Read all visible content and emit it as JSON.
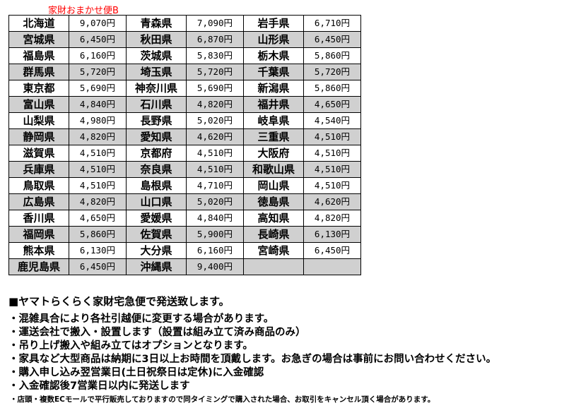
{
  "title": "家財おまかせ便B",
  "rows": [
    [
      [
        "北海道",
        "9,070円"
      ],
      [
        "青森県",
        "7,090円"
      ],
      [
        "岩手県",
        "6,710円"
      ]
    ],
    [
      [
        "宮城県",
        "6,450円"
      ],
      [
        "秋田県",
        "6,870円"
      ],
      [
        "山形県",
        "6,450円"
      ]
    ],
    [
      [
        "福島県",
        "6,160円"
      ],
      [
        "茨城県",
        "5,830円"
      ],
      [
        "栃木県",
        "5,860円"
      ]
    ],
    [
      [
        "群馬県",
        "5,720円"
      ],
      [
        "埼玉県",
        "5,720円"
      ],
      [
        "千葉県",
        "5,720円"
      ]
    ],
    [
      [
        "東京都",
        "5,690円"
      ],
      [
        "神奈川県",
        "5,690円"
      ],
      [
        "新潟県",
        "5,860円"
      ]
    ],
    [
      [
        "富山県",
        "4,840円"
      ],
      [
        "石川県",
        "4,820円"
      ],
      [
        "福井県",
        "4,650円"
      ]
    ],
    [
      [
        "山梨県",
        "4,980円"
      ],
      [
        "長野県",
        "5,020円"
      ],
      [
        "岐阜県",
        "4,540円"
      ]
    ],
    [
      [
        "静岡県",
        "4,820円"
      ],
      [
        "愛知県",
        "4,620円"
      ],
      [
        "三重県",
        "4,510円"
      ]
    ],
    [
      [
        "滋賀県",
        "4,510円"
      ],
      [
        "京都府",
        "4,510円"
      ],
      [
        "大阪府",
        "4,510円"
      ]
    ],
    [
      [
        "兵庫県",
        "4,510円"
      ],
      [
        "奈良県",
        "4,510円"
      ],
      [
        "和歌山県",
        "4,510円"
      ]
    ],
    [
      [
        "鳥取県",
        "4,510円"
      ],
      [
        "島根県",
        "4,710円"
      ],
      [
        "岡山県",
        "4,510円"
      ]
    ],
    [
      [
        "広島県",
        "4,820円"
      ],
      [
        "山口県",
        "5,020円"
      ],
      [
        "徳島県",
        "4,620円"
      ]
    ],
    [
      [
        "香川県",
        "4,650円"
      ],
      [
        "愛媛県",
        "4,840円"
      ],
      [
        "高知県",
        "4,820円"
      ]
    ],
    [
      [
        "福岡県",
        "5,860円"
      ],
      [
        "佐賀県",
        "5,900円"
      ],
      [
        "長崎県",
        "6,130円"
      ]
    ],
    [
      [
        "熊本県",
        "6,130円"
      ],
      [
        "大分県",
        "6,160円"
      ],
      [
        "宮崎県",
        "6,450円"
      ]
    ],
    [
      [
        "鹿児島県",
        "6,450円"
      ],
      [
        "沖縄県",
        "9,400円"
      ],
      [
        "",
        ""
      ]
    ]
  ],
  "notes": {
    "heading": "■ヤマトらくらく家財宅急便で発送致します。",
    "items": [
      "・混雑具合により各社引越便に変更する場合があります。",
      "・運送会社で搬入・設置します（設置は組み立て済み商品のみ）",
      "・吊り上げ搬入や組み立てはオプションとなります。",
      "・家具など大型商品は納期に3日以上お時間を頂戴します。お急ぎの場合は事前にお問い合わせください。",
      "・購入申し込み翌営業日(土日祝祭日は定休)に入金確認",
      "・入金確認後7営業日以内に発送します"
    ],
    "small": "・店頭・複数ECモールで平行販売しておりますので同タイミングで購入された場合、お取引をキャンセル頂く場合があります。"
  },
  "colors": {
    "title": "#ff0000",
    "stripe": "#d0d0d0"
  }
}
